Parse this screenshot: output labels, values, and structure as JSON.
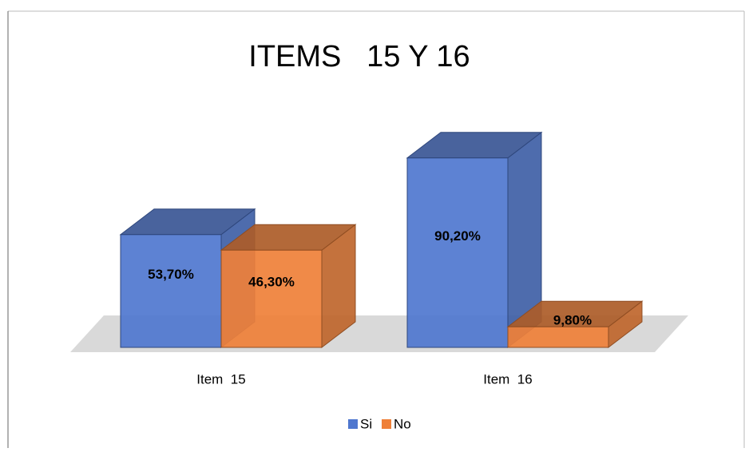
{
  "chart_data": {
    "type": "bar3d",
    "title": "ITEMS   15 Y 16",
    "categories": [
      "Item  15",
      "Item  16"
    ],
    "series": [
      {
        "name": "Si",
        "color": "#4f77cf",
        "values": [
          53.7,
          90.2
        ],
        "value_labels": [
          "53,70%",
          "90,20%"
        ]
      },
      {
        "name": "No",
        "color": "#ef8038",
        "values": [
          46.3,
          9.8
        ],
        "value_labels": [
          "46,30%",
          "9,80%"
        ]
      }
    ],
    "legend": "bottom"
  }
}
